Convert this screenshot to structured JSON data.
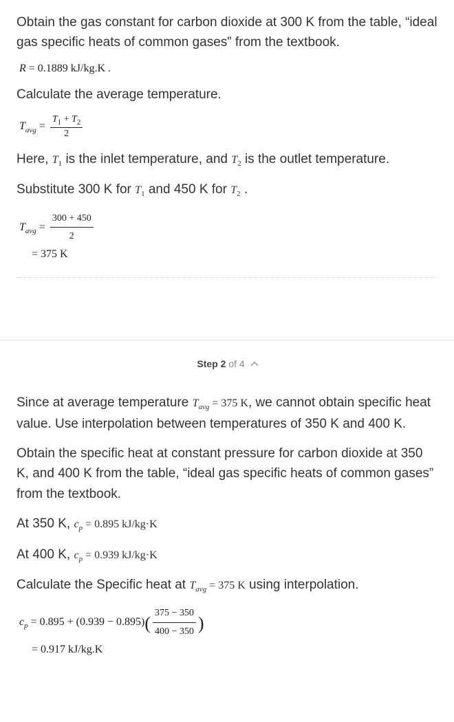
{
  "step1": {
    "p1": "Obtain the gas constant for carbon dioxide at 300 K from the table, “ideal gas specific heats of common gases” from the textbook.",
    "eq_R_lhs": "R",
    "eq_R_rhs": "= 0.1889 kJ/kg.K .",
    "p2": "Calculate the average temperature.",
    "eq_Tavg": {
      "T": "T",
      "avg": "avg",
      "eq": "=",
      "num_T1": "T",
      "num_sub1": "1",
      "plus": "+",
      "num_T2": "T",
      "num_sub2": "2",
      "den": "2"
    },
    "p3_a": "Here, ",
    "p3_T1": "T",
    "p3_T1_sub": "1",
    "p3_b": " is the inlet temperature, and ",
    "p3_T2": "T",
    "p3_T2_sub": "2",
    "p3_c": " is the outlet temperature.",
    "p4_a": "Substitute 300 K for ",
    "p4_T1": "T",
    "p4_T1_sub": "1",
    "p4_b": " and 450 K for ",
    "p4_T2": "T",
    "p4_T2_sub": "2",
    "p4_c": ".",
    "eq_sub": {
      "T": "T",
      "avg": "avg",
      "eq": "=",
      "num": "300 + 450",
      "den": "2",
      "result": "= 375 K"
    }
  },
  "stepHeader": {
    "label_a": "Step ",
    "num": "2",
    "label_b": " of 4"
  },
  "step2": {
    "p1_a": "Since at average temperature ",
    "p1_T": "T",
    "p1_avg": "avg",
    "p1_eq": " = 375 K",
    "p1_b": ", we cannot obtain specific heat value. Use interpolation between temperatures of 350 K and 400 K.",
    "p2": "Obtain the specific heat at constant pressure for carbon dioxide at 350 K, and 400 K from the table, “ideal gas specific heats of common gases” from the textbook.",
    "p3_a": "At 350 K, ",
    "p3_c": "c",
    "p3_p": "p",
    "p3_val": " = 0.895 kJ/kg·K",
    "p4_a": "At 400 K, ",
    "p4_c": "c",
    "p4_p": "p",
    "p4_val": " = 0.939 kJ/kg·K",
    "p5_a": "Calculate the Specific heat at ",
    "p5_T": "T",
    "p5_avg": "avg",
    "p5_eq": " = 375 K",
    "p5_b": " using interpolation.",
    "eq_cp": {
      "c": "c",
      "p": "p",
      "expr": " = 0.895 + (0.939 − 0.895)",
      "num": "375 − 350",
      "den": "400 − 350",
      "result": "= 0.917 kJ/kg.K"
    }
  },
  "colors": {
    "text": "#333333",
    "math": "#222222",
    "muted": "#888888",
    "sep": "#e5e5e5"
  },
  "fonts": {
    "body_family": "Arial",
    "body_size_pt": 14,
    "math_family": "Times New Roman",
    "math_size_pt": 12
  }
}
